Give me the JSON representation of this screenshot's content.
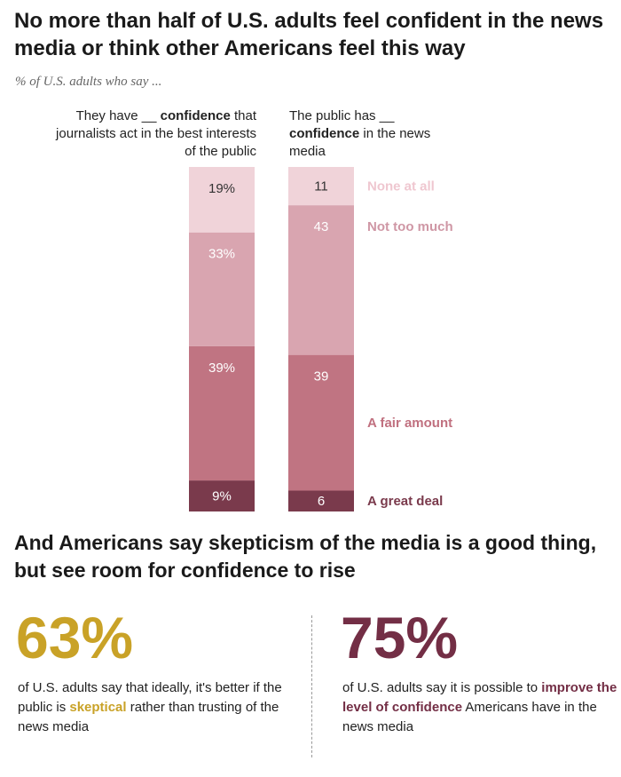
{
  "title": "No more than half of U.S. adults feel confident in the news media or think other Americans feel this way",
  "subtitle": "% of U.S. adults who say ...",
  "columns": [
    {
      "head_pre": "They have __ ",
      "head_bold": "confidence",
      "head_post": " that journalists act in the best interests of the public"
    },
    {
      "head_pre": "The public has __ ",
      "head_bold": "confidence",
      "head_post": " in the news media"
    }
  ],
  "chart_data": {
    "type": "bar",
    "stacked": true,
    "orientation": "vertical",
    "categories": [
      "They have __ confidence that journalists act in the best interests of the public",
      "The public has __ confidence in the news media"
    ],
    "series": [
      {
        "name": "None at all",
        "values": [
          19,
          11
        ],
        "labels": [
          "19%",
          "11"
        ],
        "color": "#f0d3d9"
      },
      {
        "name": "Not too much",
        "values": [
          33,
          43
        ],
        "labels": [
          "33%",
          "43"
        ],
        "color": "#d9a5b0"
      },
      {
        "name": "A fair amount",
        "values": [
          39,
          39
        ],
        "labels": [
          "39%",
          "39"
        ],
        "color": "#c07482"
      },
      {
        "name": "A great deal",
        "values": [
          9,
          6
        ],
        "labels": [
          "9%",
          "6"
        ],
        "color": "#7a3a4c"
      }
    ],
    "stack_order": "bottom-to-top: A great deal, A fair amount, Not too much, None at all",
    "legend_placement": "right of second bar, aligned with segments",
    "ylim": [
      0,
      100
    ]
  },
  "section2": {
    "title": "And Americans say skepticism of the media is a good thing, but see room for confidence to rise"
  },
  "stats": [
    {
      "big": "63%",
      "text_pre": "of U.S. adults say that ideally, it's better if the public is ",
      "text_hl": "skeptical",
      "text_post": " rather than trusting of the news media",
      "color": "#c9a227"
    },
    {
      "big": "75%",
      "text_pre": "of U.S. adults say it is possible to ",
      "text_hl": "improve the level of confidence",
      "text_post": " Americans have in the news media",
      "color": "#732e45"
    }
  ]
}
